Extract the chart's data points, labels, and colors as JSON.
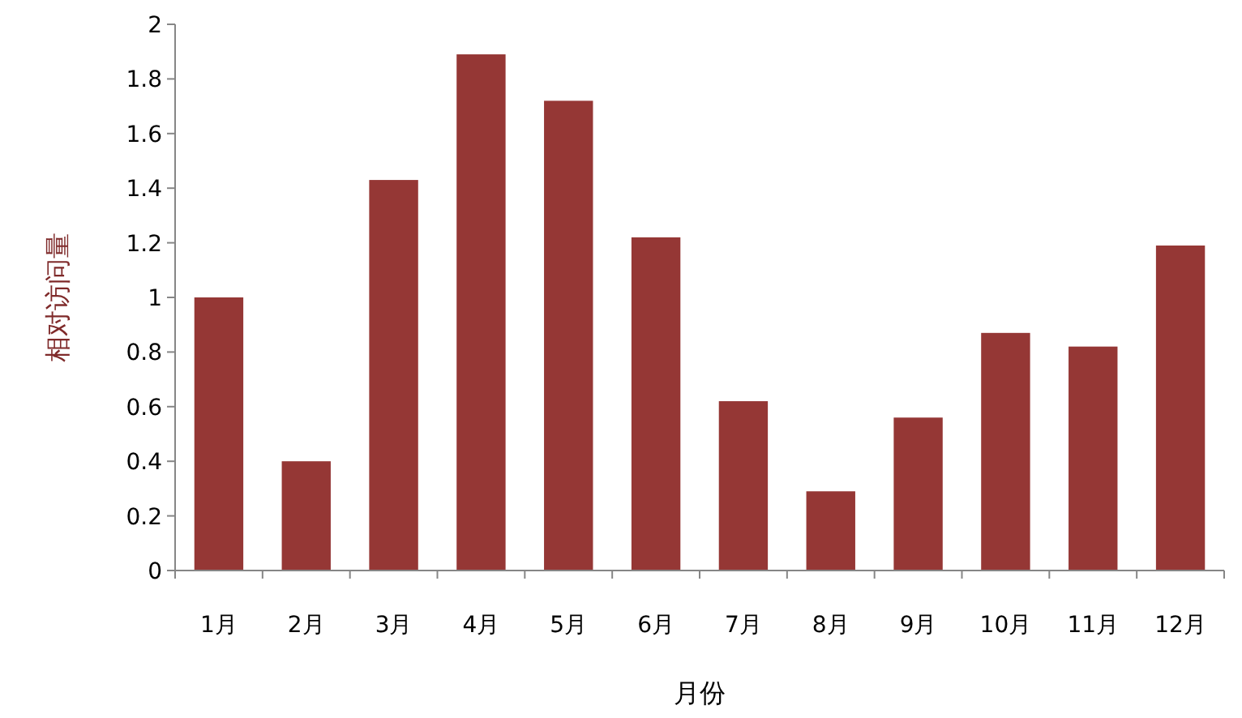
{
  "chart_data": {
    "type": "bar",
    "xlabel": "月份",
    "ylabel": "相对访问量",
    "categories": [
      "1月",
      "2月",
      "3月",
      "4月",
      "5月",
      "6月",
      "7月",
      "8月",
      "9月",
      "10月",
      "11月",
      "12月"
    ],
    "values": [
      1.0,
      0.4,
      1.43,
      1.89,
      1.72,
      1.22,
      0.62,
      0.29,
      0.56,
      0.87,
      0.82,
      1.19
    ],
    "color": "#953735",
    "ylim": [
      0,
      2
    ],
    "yticks": [
      0,
      0.2,
      0.4,
      0.6,
      0.8,
      1,
      1.2,
      1.4,
      1.6,
      1.8,
      2
    ]
  }
}
